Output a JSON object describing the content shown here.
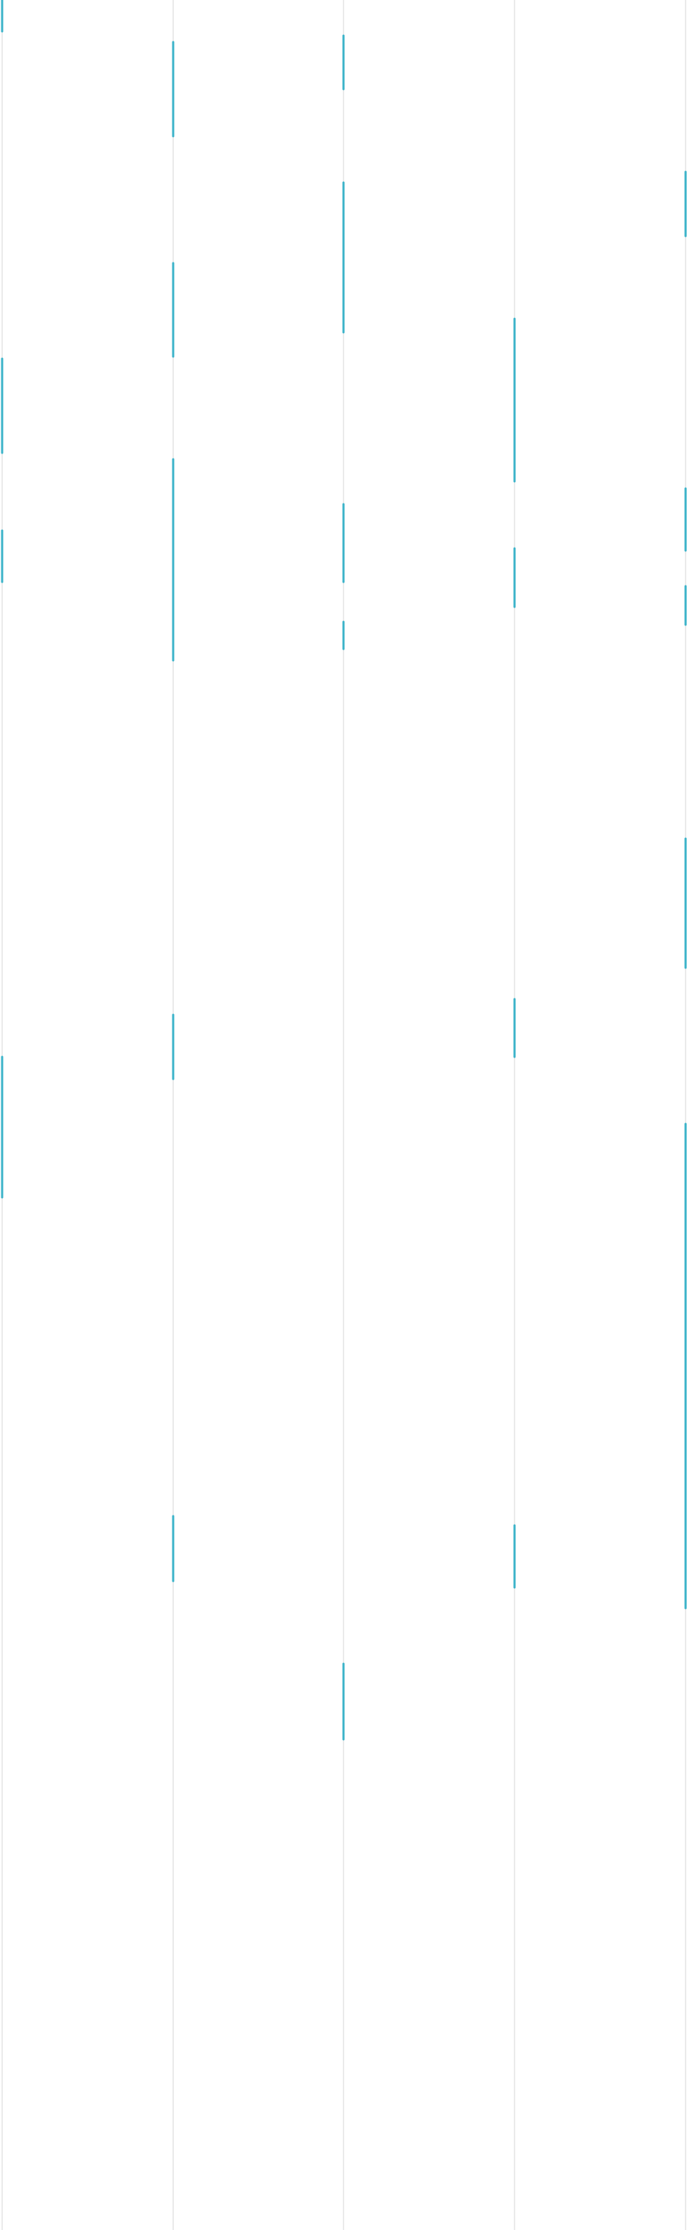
{
  "colors": {
    "background": "#ffffff",
    "guide_line": "#d4d4d4",
    "accent_stroke": "#3bb3c9"
  },
  "columns": [
    {
      "id": "col-1",
      "segments": [
        {
          "from": 0.0,
          "to": 0.014
        },
        {
          "from": 0.161,
          "to": 0.203
        },
        {
          "from": 0.238,
          "to": 0.261
        },
        {
          "from": 0.474,
          "to": 0.537
        }
      ]
    },
    {
      "id": "col-2",
      "segments": [
        {
          "from": 0.019,
          "to": 0.061
        },
        {
          "from": 0.118,
          "to": 0.16
        },
        {
          "from": 0.206,
          "to": 0.296
        },
        {
          "from": 0.455,
          "to": 0.484
        },
        {
          "from": 0.68,
          "to": 0.709
        }
      ]
    },
    {
      "id": "col-3",
      "segments": [
        {
          "from": 0.016,
          "to": 0.04
        },
        {
          "from": 0.082,
          "to": 0.149
        },
        {
          "from": 0.226,
          "to": 0.261
        },
        {
          "from": 0.279,
          "to": 0.291
        },
        {
          "from": 0.746,
          "to": 0.78
        }
      ]
    },
    {
      "id": "col-4",
      "segments": [
        {
          "from": 0.143,
          "to": 0.216
        },
        {
          "from": 0.246,
          "to": 0.272
        },
        {
          "from": 0.448,
          "to": 0.474
        },
        {
          "from": 0.684,
          "to": 0.712
        }
      ]
    },
    {
      "id": "col-5",
      "segments": [
        {
          "from": 0.077,
          "to": 0.106
        },
        {
          "from": 0.219,
          "to": 0.247
        },
        {
          "from": 0.263,
          "to": 0.28
        },
        {
          "from": 0.376,
          "to": 0.434
        },
        {
          "from": 0.504,
          "to": 0.721
        }
      ]
    }
  ]
}
